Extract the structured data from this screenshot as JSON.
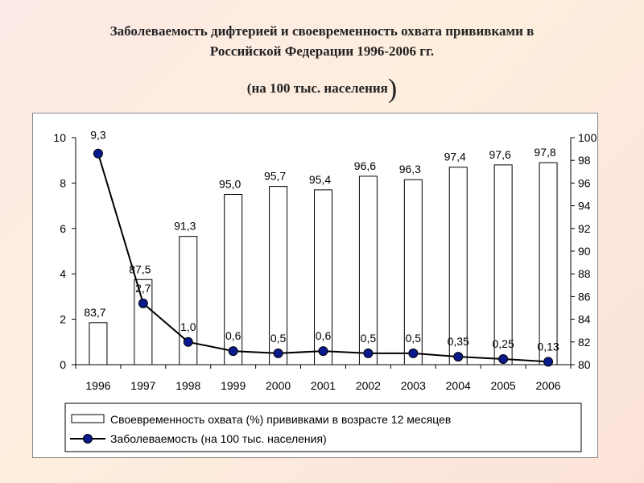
{
  "header": {
    "title_line1": "Заболеваемость дифтерией  и своевременность охвата прививками в",
    "title_line2": "Российской Федерации 1996-2006 гг.",
    "subtitle": "(на 100 тыс. населения",
    "subtitle_close": ")"
  },
  "colors": {
    "bar_fill": "#ffffff",
    "bar_stroke": "#000000",
    "line": "#000000",
    "marker": "#0a1a8c"
  },
  "chart_data": {
    "type": "bar+line",
    "categories": [
      "1996",
      "1997",
      "1998",
      "1999",
      "2000",
      "2001",
      "2002",
      "2003",
      "2004",
      "2005",
      "2006"
    ],
    "series": [
      {
        "name": "Своевременность охвата  (%) прививками в возрасте 12 месяцев",
        "type": "bar",
        "axis": "right",
        "values": [
          83.7,
          87.5,
          91.3,
          95.0,
          95.7,
          95.4,
          96.6,
          96.3,
          97.4,
          97.6,
          97.8
        ],
        "labels": [
          "83,7",
          "87,5",
          "91,3",
          "95,0",
          "95,7",
          "95,4",
          "96,6",
          "96,3",
          "97,4",
          "97,6",
          "97,8"
        ]
      },
      {
        "name": "Заболеваемость (на 100 тыс. населения)",
        "type": "line",
        "axis": "left",
        "values": [
          9.3,
          2.7,
          1.0,
          0.6,
          0.5,
          0.6,
          0.5,
          0.5,
          0.35,
          0.25,
          0.13
        ],
        "labels": [
          "9,3",
          "2,7",
          "1,0",
          "0,6",
          "0,5",
          "0,6",
          "0,5",
          "0,5",
          "0,35",
          "0,25",
          "0,13"
        ]
      }
    ],
    "y_left": {
      "min": 0,
      "max": 10,
      "ticks": [
        "0",
        "2",
        "4",
        "6",
        "8",
        "10"
      ]
    },
    "y_right": {
      "min": 80,
      "max": 100,
      "ticks": [
        "80",
        "82",
        "84",
        "86",
        "88",
        "90",
        "92",
        "94",
        "96",
        "98",
        "100"
      ]
    },
    "grid": false,
    "legend_position": "bottom"
  }
}
